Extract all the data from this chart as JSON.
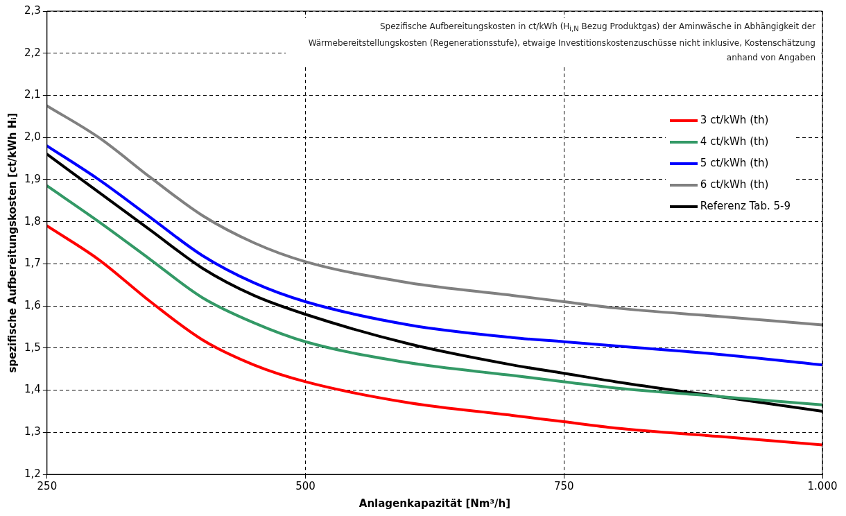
{
  "chart_data": {
    "type": "line",
    "xlabel": "Anlagenkapazität [Nm³/h]",
    "ylabel": "spezifische Aufbereitungskosten [ct/kWh Hᵢ]",
    "annotations": [
      "Spezifische Aufbereitungskosten in ct/kWh (H$_{i,N}$ Bezug Produktgas) der Aminwäsche in Abhängigkeit der Wärmebereitstellungskosten (Regenerationsstufe), etwaige Investitionskostenzuschüsse nicht inklusive, Kostenschätzung anhand von Angaben"
    ],
    "x": [
      250,
      300,
      350,
      400,
      450,
      500,
      600,
      700,
      750,
      800,
      900,
      1000
    ],
    "series": [
      {
        "name": "3 ct/kWh (th)",
        "color": "#ff0000",
        "values": [
          1.79,
          1.71,
          1.61,
          1.52,
          1.46,
          1.42,
          1.37,
          1.34,
          1.325,
          1.31,
          1.29,
          1.27
        ]
      },
      {
        "name": "4 ct/kWh (th)",
        "color": "#339966",
        "values": [
          1.885,
          1.8,
          1.71,
          1.62,
          1.56,
          1.515,
          1.465,
          1.435,
          1.42,
          1.405,
          1.385,
          1.365
        ]
      },
      {
        "name": "5 ct/kWh (th)",
        "color": "#0000ff",
        "values": [
          1.98,
          1.9,
          1.81,
          1.72,
          1.655,
          1.61,
          1.555,
          1.525,
          1.515,
          1.505,
          1.485,
          1.46
        ]
      },
      {
        "name": "6 ct/kWh (th)",
        "color": "#808080",
        "values": [
          2.075,
          2.0,
          1.905,
          1.815,
          1.75,
          1.705,
          1.655,
          1.625,
          1.61,
          1.595,
          1.575,
          1.555
        ]
      },
      {
        "name": "Referenz Tab. 5-9",
        "color": "#000000",
        "values": [
          1.96,
          1.87,
          1.78,
          1.69,
          1.625,
          1.58,
          1.51,
          1.46,
          1.44,
          1.42,
          1.385,
          1.35
        ]
      }
    ],
    "xlim": [
      250,
      1000
    ],
    "xticks": [
      250,
      500,
      750,
      {
        "value": 1000,
        "label": "1.000"
      }
    ],
    "ylim": [
      1.2,
      2.3
    ],
    "yticks": [
      {
        "value": 1.2,
        "label": "1,2"
      },
      {
        "value": 1.3,
        "label": "1,3"
      },
      {
        "value": 1.4,
        "label": "1,4"
      },
      {
        "value": 1.5,
        "label": "1,5"
      },
      {
        "value": 1.6,
        "label": "1,6"
      },
      {
        "value": 1.7,
        "label": "1,7"
      },
      {
        "value": 1.8,
        "label": "1,8"
      },
      {
        "value": 1.9,
        "label": "1,9"
      },
      {
        "value": 2.0,
        "label": "2,0"
      },
      {
        "value": 2.1,
        "label": "2,1"
      },
      {
        "value": 2.2,
        "label": "2,2"
      },
      {
        "value": 2.3,
        "label": "2,3"
      }
    ],
    "grid": true,
    "legend": "top right",
    "marker": "none",
    "line_style": "solid"
  }
}
